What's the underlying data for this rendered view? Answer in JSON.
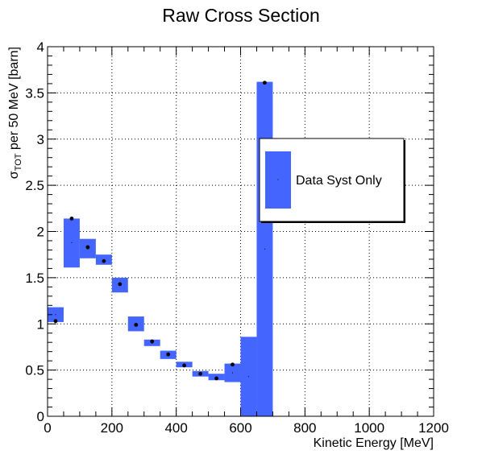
{
  "chart_data": {
    "type": "bar",
    "title": "Raw Cross Section",
    "xlabel": "Kinetic Energy [MeV]",
    "ylabel": {
      "prefix": "σ",
      "subscript": "TOT",
      "suffix": " per 50 MeV [barn]"
    },
    "xlim": [
      0,
      1200
    ],
    "ylim": [
      0,
      4
    ],
    "x_ticks": [
      0,
      200,
      400,
      600,
      800,
      1000,
      1200
    ],
    "y_ticks": [
      0,
      0.5,
      1,
      1.5,
      2,
      2.5,
      3,
      3.5,
      4
    ],
    "x_tick_labels": [
      "0",
      "200",
      "400",
      "600",
      "800",
      "1000",
      "1200"
    ],
    "y_tick_labels": [
      "0",
      "0.5",
      "1",
      "1.5",
      "2",
      "2.5",
      "3",
      "3.5",
      "4"
    ],
    "grid": true,
    "legend": {
      "position": "right",
      "entries": [
        "Data Syst Only"
      ]
    },
    "series": [
      {
        "name": "Data Syst Only",
        "color": "#4466ff",
        "bins": [
          {
            "xlow": 0,
            "xhigh": 50,
            "center": 1.1,
            "ylow": 1.02,
            "yhigh": 1.18
          },
          {
            "xlow": 50,
            "xhigh": 100,
            "center": 1.88,
            "ylow": 1.61,
            "yhigh": 2.14
          },
          {
            "xlow": 100,
            "xhigh": 150,
            "center": 1.81,
            "ylow": 1.71,
            "yhigh": 1.92
          },
          {
            "xlow": 150,
            "xhigh": 200,
            "center": 1.69,
            "ylow": 1.64,
            "yhigh": 1.75
          },
          {
            "xlow": 200,
            "xhigh": 250,
            "center": 1.42,
            "ylow": 1.34,
            "yhigh": 1.5
          },
          {
            "xlow": 250,
            "xhigh": 300,
            "center": 0.99,
            "ylow": 0.92,
            "yhigh": 1.08
          },
          {
            "xlow": 300,
            "xhigh": 350,
            "center": 0.79,
            "ylow": 0.76,
            "yhigh": 0.83
          },
          {
            "xlow": 350,
            "xhigh": 400,
            "center": 0.67,
            "ylow": 0.62,
            "yhigh": 0.71
          },
          {
            "xlow": 400,
            "xhigh": 450,
            "center": 0.56,
            "ylow": 0.53,
            "yhigh": 0.59
          },
          {
            "xlow": 450,
            "xhigh": 500,
            "center": 0.46,
            "ylow": 0.43,
            "yhigh": 0.49
          },
          {
            "xlow": 500,
            "xhigh": 550,
            "center": 0.42,
            "ylow": 0.39,
            "yhigh": 0.46
          },
          {
            "xlow": 550,
            "xhigh": 600,
            "center": 0.47,
            "ylow": 0.37,
            "yhigh": 0.57
          },
          {
            "xlow": 600,
            "xhigh": 650,
            "center": 0.43,
            "ylow": 0.0,
            "yhigh": 0.86
          },
          {
            "xlow": 650,
            "xhigh": 700,
            "center": 1.81,
            "ylow": 0.0,
            "yhigh": 3.62
          }
        ]
      }
    ],
    "markers": [
      {
        "x": 25,
        "y": 1.03
      },
      {
        "x": 75,
        "y": 2.14
      },
      {
        "x": 125,
        "y": 1.83
      },
      {
        "x": 175,
        "y": 1.68
      },
      {
        "x": 225,
        "y": 1.43
      },
      {
        "x": 275,
        "y": 0.99
      },
      {
        "x": 325,
        "y": 0.81
      },
      {
        "x": 375,
        "y": 0.67
      },
      {
        "x": 425,
        "y": 0.55
      },
      {
        "x": 475,
        "y": 0.46
      },
      {
        "x": 525,
        "y": 0.41
      },
      {
        "x": 575,
        "y": 0.56
      },
      {
        "x": 675,
        "y": 3.61
      }
    ]
  }
}
